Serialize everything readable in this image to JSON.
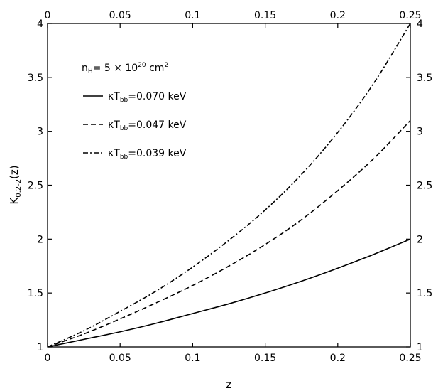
{
  "chart_data": {
    "type": "line",
    "xlabel": "z",
    "ylabel": "K",
    "ylabel_sub": "0.2-2",
    "ylabel_suffix": "(z)",
    "xlim": [
      0,
      0.25
    ],
    "ylim": [
      1,
      4
    ],
    "x_ticks": [
      0,
      0.05,
      0.1,
      0.15,
      0.2,
      0.25
    ],
    "x_tick_labels": [
      "0",
      "0.05",
      "0.1",
      "0.15",
      "0.2",
      "0.25"
    ],
    "y_ticks": [
      1,
      1.5,
      2,
      2.5,
      3,
      3.5,
      4
    ],
    "y_tick_labels": [
      "1",
      "1.5",
      "2",
      "2.5",
      "3",
      "3.5",
      "4"
    ],
    "grid": false,
    "legend_position": "top-left",
    "annotation": {
      "prefix": "n",
      "prefix_sub": "H",
      "text": "= 5 × 10",
      "exponent": "20",
      "unit": " cm",
      "unit_exp": "2"
    },
    "series": [
      {
        "name": "κT_bb=0.070 keV",
        "label_main": "κT",
        "label_sub": "bb",
        "label_rest": "=0.070 keV",
        "style": "solid",
        "x": [
          0,
          0.025,
          0.05,
          0.075,
          0.1,
          0.125,
          0.15,
          0.175,
          0.2,
          0.225,
          0.25
        ],
        "y": [
          1.0,
          1.07,
          1.14,
          1.22,
          1.31,
          1.4,
          1.5,
          1.61,
          1.73,
          1.86,
          2.0
        ]
      },
      {
        "name": "κT_bb=0.047 keV",
        "label_main": "κT",
        "label_sub": "bb",
        "label_rest": "=0.047 keV",
        "style": "dashed",
        "x": [
          0,
          0.025,
          0.05,
          0.075,
          0.1,
          0.125,
          0.15,
          0.175,
          0.2,
          0.225,
          0.25
        ],
        "y": [
          1.0,
          1.12,
          1.26,
          1.41,
          1.57,
          1.75,
          1.95,
          2.18,
          2.45,
          2.75,
          3.1
        ]
      },
      {
        "name": "κT_bb=0.039 keV",
        "label_main": "κT",
        "label_sub": "bb",
        "label_rest": "=0.039 keV",
        "style": "dashdot",
        "x": [
          0,
          0.025,
          0.05,
          0.075,
          0.1,
          0.125,
          0.15,
          0.175,
          0.2,
          0.225,
          0.25
        ],
        "y": [
          1.0,
          1.15,
          1.33,
          1.52,
          1.74,
          1.99,
          2.27,
          2.6,
          2.99,
          3.45,
          4.0
        ]
      }
    ]
  }
}
